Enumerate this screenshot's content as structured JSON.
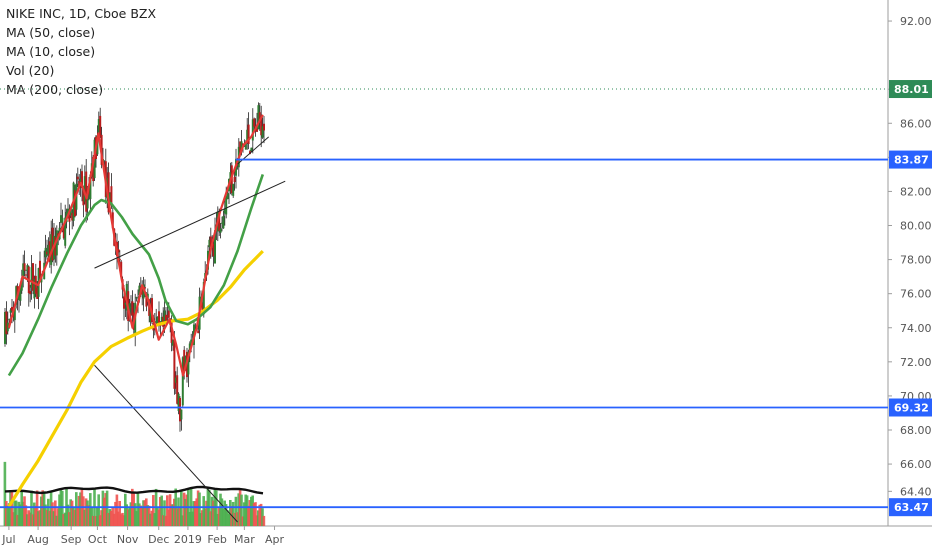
{
  "legend": {
    "title": "NIKE INC, 1D, Cboe BZX",
    "ma50": "MA (50, close)",
    "ma10": "MA (10, close)",
    "vol": "Vol (20)",
    "ma200": "MA (200, close)"
  },
  "colors": {
    "up": "#4caf50",
    "down": "#ef5350",
    "ma10": "#e53935",
    "ma50": "#43a047",
    "ma200": "#f5d000",
    "volma": "#111111",
    "hline": "#2962ff",
    "lastprice": "#2e8b57",
    "trend": "#222222"
  },
  "chart_data": {
    "type": "candlestick",
    "symbol": "NIKE INC",
    "interval": "1D",
    "exchange": "Cboe BZX",
    "y_axis_ticks": [
      92.0,
      88.0,
      86.0,
      84.0,
      82.0,
      80.0,
      78.0,
      76.0,
      74.0,
      72.0,
      70.0,
      68.0,
      66.0,
      64.4
    ],
    "x_axis_labels": [
      "Jul",
      "Aug",
      "Sep",
      "Oct",
      "Nov",
      "Dec",
      "2019",
      "Feb",
      "Mar",
      "Apr"
    ],
    "ylim": [
      62.6,
      93.0
    ],
    "last_price": "88.01",
    "price_levels": [
      {
        "label": "83.87",
        "value": 83.87
      },
      {
        "label": "69.32",
        "value": 69.32
      },
      {
        "label": "63.47",
        "value": 63.47
      }
    ],
    "trendlines": [
      {
        "from": [
          "2018-09-28",
          77.5
        ],
        "to": [
          "2018-11-30",
          79.1
        ],
        "extends_to": [
          "2019-04-12",
          82.6
        ]
      },
      {
        "from": [
          "2018-09-28",
          71.8
        ],
        "to": [
          "2019-02-22",
          62.6
        ]
      },
      {
        "from": [
          "2019-02-22",
          83.6
        ],
        "to": [
          "2019-03-26",
          85.2
        ]
      }
    ],
    "moving_averages": {
      "ma10": [
        [
          "2018-07-02",
          74.0
        ],
        [
          "2018-07-16",
          77.0
        ],
        [
          "2018-08-01",
          76.5
        ],
        [
          "2018-08-15",
          78.5
        ],
        [
          "2018-08-31",
          80.5
        ],
        [
          "2018-09-14",
          82.5
        ],
        [
          "2018-09-20",
          81.6
        ],
        [
          "2018-10-02",
          85.4
        ],
        [
          "2018-10-15",
          80.5
        ],
        [
          "2018-10-26",
          76.8
        ],
        [
          "2018-11-06",
          74.0
        ],
        [
          "2018-11-16",
          76.5
        ],
        [
          "2018-11-23",
          75.5
        ],
        [
          "2018-12-03",
          73.3
        ],
        [
          "2018-12-14",
          74.5
        ],
        [
          "2018-12-21",
          73.0
        ],
        [
          "2018-12-28",
          71.2
        ],
        [
          "2019-01-11",
          74.0
        ],
        [
          "2019-01-25",
          78.5
        ],
        [
          "2019-02-04",
          80.8
        ],
        [
          "2019-02-15",
          82.7
        ],
        [
          "2019-02-28",
          84.7
        ],
        [
          "2019-03-08",
          85.2
        ],
        [
          "2019-03-20",
          86.5
        ]
      ],
      "ma50": [
        [
          "2018-07-02",
          71.2
        ],
        [
          "2018-07-16",
          72.5
        ],
        [
          "2018-08-01",
          74.5
        ],
        [
          "2018-08-15",
          76.4
        ],
        [
          "2018-08-31",
          78.4
        ],
        [
          "2018-09-14",
          80.0
        ],
        [
          "2018-09-28",
          81.2
        ],
        [
          "2018-10-05",
          81.5
        ],
        [
          "2018-10-15",
          81.3
        ],
        [
          "2018-10-26",
          80.5
        ],
        [
          "2018-11-06",
          79.5
        ],
        [
          "2018-11-23",
          78.3
        ],
        [
          "2018-12-03",
          76.9
        ],
        [
          "2018-12-10",
          75.6
        ],
        [
          "2018-12-21",
          74.4
        ],
        [
          "2019-01-02",
          74.2
        ],
        [
          "2019-01-11",
          74.5
        ],
        [
          "2019-01-25",
          75.2
        ],
        [
          "2019-02-08",
          76.5
        ],
        [
          "2019-02-22",
          78.5
        ],
        [
          "2019-03-08",
          81.0
        ],
        [
          "2019-03-20",
          83.0
        ]
      ],
      "ma200": [
        [
          "2018-07-02",
          63.5
        ],
        [
          "2018-07-16",
          64.8
        ],
        [
          "2018-08-01",
          66.2
        ],
        [
          "2018-08-15",
          67.6
        ],
        [
          "2018-08-31",
          69.2
        ],
        [
          "2018-09-14",
          70.8
        ],
        [
          "2018-09-28",
          72.0
        ],
        [
          "2018-10-15",
          72.9
        ],
        [
          "2018-11-01",
          73.4
        ],
        [
          "2018-11-16",
          73.8
        ],
        [
          "2018-12-03",
          74.2
        ],
        [
          "2018-12-17",
          74.4
        ],
        [
          "2019-01-02",
          74.5
        ],
        [
          "2019-01-16",
          74.9
        ],
        [
          "2019-02-01",
          75.6
        ],
        [
          "2019-02-15",
          76.4
        ],
        [
          "2019-03-01",
          77.4
        ],
        [
          "2019-03-20",
          78.5
        ]
      ]
    },
    "volume_panel": {
      "name": "Vol (20)",
      "ma_name": "MA 20"
    }
  }
}
